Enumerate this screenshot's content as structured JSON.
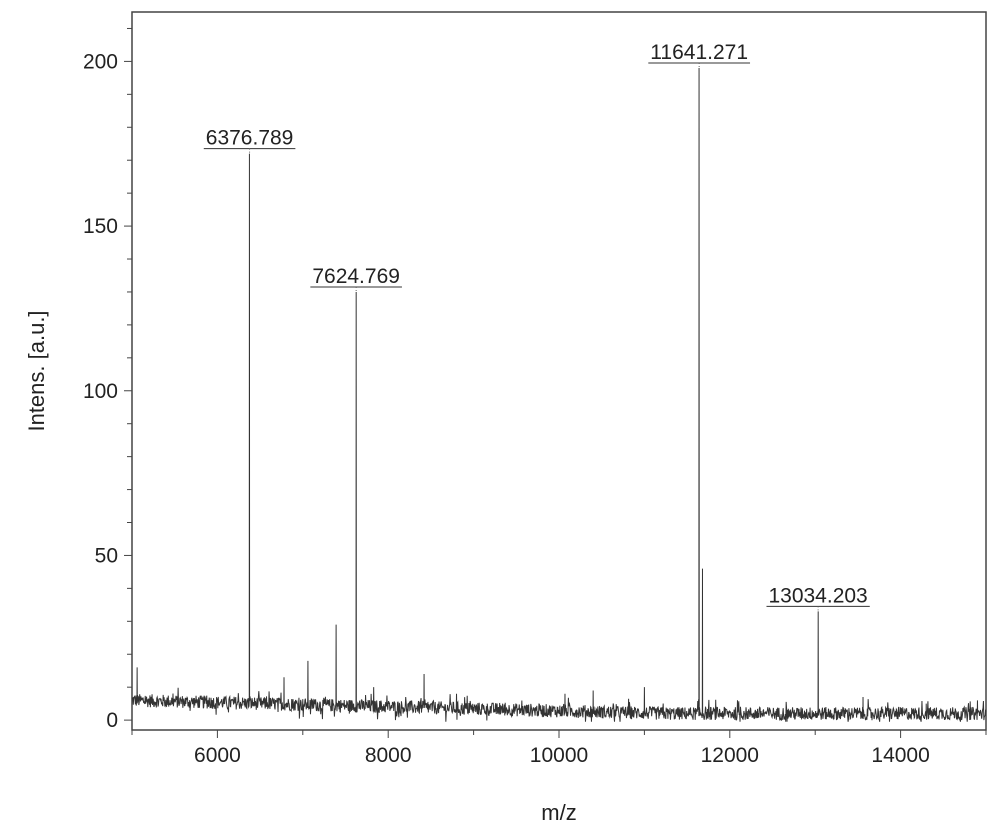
{
  "chart_data": {
    "type": "line",
    "xlabel": "m/z",
    "ylabel": "Intens. [a.u.]",
    "xlim": [
      5000,
      15000
    ],
    "ylim": [
      -3,
      215
    ],
    "x_ticks": [
      6000,
      8000,
      10000,
      12000,
      14000
    ],
    "y_ticks": [
      0,
      50,
      100,
      150,
      200
    ],
    "grid": false,
    "line_color": "#333333",
    "peaks": [
      {
        "x": 6376.789,
        "y": 172,
        "label": "6376.789"
      },
      {
        "x": 7624.769,
        "y": 130,
        "label": "7624.769"
      },
      {
        "x": 11641.271,
        "y": 198,
        "label": "11641.271"
      },
      {
        "x": 13034.203,
        "y": 33,
        "label": "13034.203"
      }
    ],
    "minor_peaks": [
      {
        "x": 5060,
        "y": 16
      },
      {
        "x": 6780,
        "y": 13
      },
      {
        "x": 7060,
        "y": 18
      },
      {
        "x": 7390,
        "y": 29
      },
      {
        "x": 7830,
        "y": 10
      },
      {
        "x": 8420,
        "y": 14
      },
      {
        "x": 8800,
        "y": 8
      },
      {
        "x": 10070,
        "y": 8
      },
      {
        "x": 10400,
        "y": 9
      },
      {
        "x": 11000,
        "y": 10
      },
      {
        "x": 11680,
        "y": 46
      },
      {
        "x": 13560,
        "y": 7
      },
      {
        "x": 14300,
        "y": 5
      },
      {
        "x": 14900,
        "y": 6
      }
    ],
    "noise": {
      "start_level": 6,
      "end_level": 2,
      "amplitude": 4
    }
  }
}
